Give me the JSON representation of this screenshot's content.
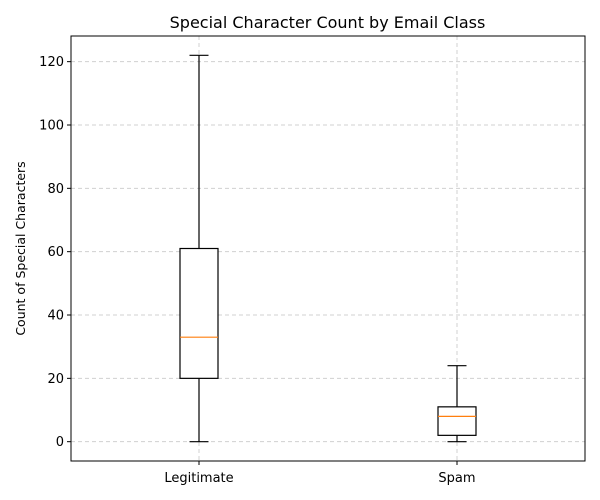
{
  "chart_data": {
    "type": "box",
    "title": "Special Character Count by Email Class",
    "xlabel": "",
    "ylabel": "Count of Special Characters",
    "categories": [
      "Legitimate",
      "Spam"
    ],
    "boxes": [
      {
        "category": "Legitimate",
        "min": 0,
        "q1": 20,
        "median": 33,
        "q3": 61,
        "max": 122
      },
      {
        "category": "Spam",
        "min": 0,
        "q1": 2,
        "median": 8,
        "q3": 11,
        "max": 24
      }
    ],
    "ylim": [
      -6.1,
      128.1
    ],
    "yticks": [
      0,
      20,
      40,
      60,
      80,
      100,
      120
    ],
    "grid": true,
    "colors": {
      "box": "#000000",
      "median": "#ff7f0e",
      "grid": "#d0d0d0"
    }
  }
}
